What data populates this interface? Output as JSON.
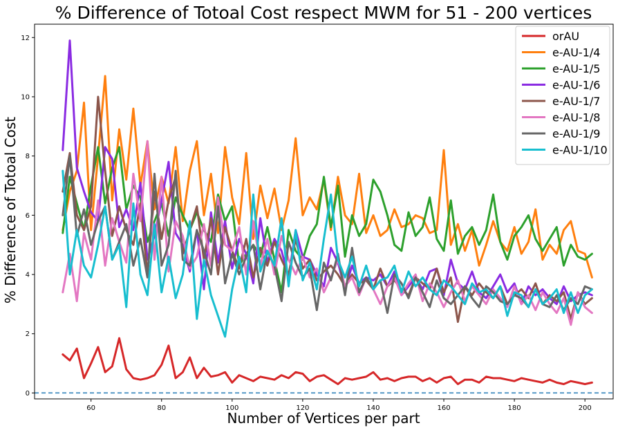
{
  "chart_data": {
    "type": "line",
    "title": "% Difference of Totoal Cost respect MWM for 51 - 200 vertices",
    "xlabel": "Number of Vertices per part",
    "ylabel": "% Difference of Totoal Cost",
    "xlim": [
      44,
      208
    ],
    "ylim": [
      -0.2,
      12.45
    ],
    "xticks": [
      60,
      80,
      100,
      120,
      140,
      160,
      180,
      200
    ],
    "yticks": [
      0,
      2,
      4,
      6,
      8,
      10,
      12
    ],
    "xtick_labels": [
      "60",
      "80",
      "100",
      "120",
      "140",
      "160",
      "180",
      "200"
    ],
    "ytick_labels": [
      "0",
      "2",
      "4",
      "6",
      "8",
      "10",
      "12"
    ],
    "grid": false,
    "legend_position": "top-right",
    "reference_line": {
      "y": 0,
      "style": "dashed",
      "color": "#1f77b4"
    },
    "x_start": 52,
    "x_step": 2,
    "series": [
      {
        "name": "orAU",
        "color": "#d62728",
        "values": [
          1.3,
          1.1,
          1.5,
          0.5,
          1.0,
          1.55,
          0.7,
          0.9,
          1.85,
          0.8,
          0.5,
          0.45,
          0.5,
          0.6,
          0.95,
          1.6,
          0.5,
          0.7,
          1.2,
          0.5,
          0.85,
          0.55,
          0.6,
          0.7,
          0.35,
          0.6,
          0.5,
          0.4,
          0.55,
          0.5,
          0.45,
          0.6,
          0.5,
          0.7,
          0.65,
          0.4,
          0.55,
          0.6,
          0.45,
          0.3,
          0.5,
          0.45,
          0.5,
          0.55,
          0.7,
          0.45,
          0.5,
          0.4,
          0.5,
          0.55,
          0.55,
          0.4,
          0.5,
          0.35,
          0.5,
          0.55,
          0.3,
          0.45,
          0.45,
          0.35,
          0.55,
          0.5,
          0.5,
          0.45,
          0.4,
          0.5,
          0.45,
          0.4,
          0.35,
          0.45,
          0.35,
          0.3,
          0.4,
          0.35,
          0.3,
          0.35
        ]
      },
      {
        "name": "e-AU-1/4",
        "color": "#ff7f0e",
        "values": [
          5.5,
          6.8,
          7.5,
          9.8,
          5.5,
          8.0,
          10.7,
          6.5,
          8.9,
          7.2,
          9.6,
          7.0,
          8.5,
          6.2,
          7.3,
          6.4,
          8.3,
          5.8,
          7.5,
          8.5,
          6.0,
          7.4,
          5.4,
          8.3,
          6.6,
          5.7,
          8.1,
          5.2,
          7.0,
          5.9,
          6.9,
          5.5,
          6.5,
          8.6,
          6.0,
          6.6,
          6.2,
          7.2,
          5.5,
          7.3,
          6.0,
          5.7,
          7.4,
          5.4,
          6.0,
          5.3,
          5.5,
          6.2,
          5.6,
          5.7,
          6.0,
          5.9,
          5.4,
          5.5,
          8.2,
          5.0,
          5.7,
          4.8,
          5.5,
          4.3,
          5.0,
          5.8,
          5.1,
          4.8,
          5.6,
          4.7,
          5.1,
          6.2,
          4.5,
          5.0,
          4.7,
          5.5,
          5.8,
          4.8,
          4.7,
          3.9
        ]
      },
      {
        "name": "e-AU-1/5",
        "color": "#2ca02c",
        "values": [
          5.4,
          7.3,
          6.4,
          5.5,
          7.0,
          8.3,
          6.4,
          7.6,
          8.3,
          6.2,
          7.0,
          6.6,
          5.1,
          5.8,
          6.4,
          5.3,
          6.6,
          6.0,
          5.5,
          6.1,
          5.5,
          5.1,
          6.7,
          5.8,
          6.3,
          4.3,
          4.7,
          5.0,
          4.6,
          5.6,
          4.5,
          3.4,
          5.5,
          4.8,
          4.5,
          5.3,
          5.7,
          7.3,
          5.6,
          7.0,
          4.6,
          6.0,
          5.3,
          5.7,
          7.2,
          6.8,
          6.0,
          5.0,
          4.8,
          6.1,
          5.3,
          5.6,
          6.6,
          5.2,
          4.8,
          6.5,
          4.7,
          5.3,
          5.6,
          5.0,
          5.5,
          6.7,
          5.1,
          4.5,
          5.3,
          5.6,
          6.0,
          5.2,
          4.8,
          5.2,
          5.6,
          4.3,
          5.0,
          4.6,
          4.5,
          4.7
        ]
      },
      {
        "name": "e-AU-1/6",
        "color": "#8a2be2",
        "values": [
          8.2,
          11.9,
          7.6,
          6.8,
          6.1,
          5.8,
          8.3,
          7.9,
          5.6,
          6.2,
          5.5,
          7.1,
          4.5,
          5.3,
          6.5,
          7.8,
          5.4,
          5.0,
          4.1,
          5.5,
          3.5,
          6.1,
          4.4,
          5.8,
          4.2,
          5.2,
          4.7,
          3.7,
          5.9,
          4.4,
          5.2,
          4.8,
          3.9,
          5.5,
          4.6,
          4.5,
          4.0,
          3.6,
          4.9,
          4.4,
          3.5,
          4.3,
          3.7,
          3.9,
          3.8,
          4.0,
          3.6,
          4.1,
          3.3,
          3.6,
          3.9,
          3.5,
          4.1,
          4.2,
          3.3,
          4.5,
          3.7,
          3.5,
          4.1,
          3.4,
          3.2,
          3.6,
          4.0,
          3.4,
          3.7,
          3.0,
          3.6,
          3.3,
          3.5,
          3.2,
          3.0,
          3.6,
          3.1,
          3.3,
          3.4,
          3.3
        ]
      },
      {
        "name": "e-AU-1/7",
        "color": "#8c564b",
        "values": [
          6.8,
          8.1,
          6.0,
          5.5,
          6.3,
          10.0,
          7.5,
          5.3,
          6.3,
          5.5,
          5.0,
          6.4,
          4.0,
          6.8,
          5.2,
          6.5,
          7.3,
          4.7,
          5.5,
          6.3,
          4.5,
          5.9,
          4.0,
          5.6,
          4.8,
          4.2,
          5.2,
          3.9,
          4.9,
          4.3,
          5.1,
          4.5,
          4.0,
          5.2,
          4.2,
          4.5,
          3.8,
          4.1,
          4.3,
          4.0,
          3.6,
          4.0,
          3.7,
          3.8,
          3.5,
          4.2,
          3.6,
          3.8,
          3.5,
          3.3,
          3.9,
          3.7,
          3.5,
          4.2,
          3.4,
          3.9,
          2.4,
          3.6,
          3.3,
          3.7,
          3.4,
          3.2,
          3.6,
          3.0,
          3.3,
          3.5,
          3.2,
          3.7,
          3.0,
          3.3,
          3.1,
          3.4,
          2.5,
          3.4,
          3.0,
          3.2
        ]
      },
      {
        "name": "e-AU-1/8",
        "color": "#e377c2",
        "values": [
          3.4,
          4.7,
          3.1,
          5.4,
          4.5,
          6.5,
          4.3,
          5.9,
          5.1,
          4.4,
          7.4,
          5.8,
          8.5,
          4.5,
          7.3,
          4.1,
          5.8,
          5.3,
          4.2,
          4.6,
          5.7,
          4.3,
          6.6,
          5.0,
          4.8,
          5.6,
          4.0,
          5.8,
          4.3,
          5.2,
          4.0,
          5.3,
          4.5,
          4.0,
          4.6,
          3.9,
          4.2,
          3.4,
          3.9,
          4.5,
          3.6,
          3.9,
          3.3,
          3.9,
          3.5,
          3.0,
          3.6,
          3.9,
          3.3,
          3.7,
          4.0,
          3.1,
          3.7,
          3.4,
          2.9,
          3.4,
          3.8,
          3.1,
          3.6,
          3.3,
          3.0,
          3.5,
          3.2,
          2.9,
          3.6,
          3.0,
          3.3,
          2.8,
          3.4,
          3.0,
          2.7,
          3.2,
          2.3,
          3.4,
          2.9,
          2.7
        ]
      },
      {
        "name": "e-AU-1/9",
        "color": "#666666",
        "values": [
          6.0,
          8.0,
          5.3,
          6.2,
          5.0,
          5.8,
          6.3,
          4.5,
          5.1,
          5.7,
          4.3,
          5.2,
          3.9,
          7.4,
          4.3,
          5.0,
          7.5,
          4.5,
          4.3,
          5.5,
          4.8,
          4.0,
          6.3,
          3.7,
          4.7,
          4.0,
          4.6,
          5.0,
          3.5,
          4.8,
          4.3,
          3.1,
          5.1,
          4.4,
          3.9,
          4.2,
          2.8,
          4.4,
          3.8,
          4.7,
          3.3,
          4.9,
          3.4,
          3.9,
          3.5,
          3.8,
          2.7,
          4.0,
          3.7,
          3.2,
          3.9,
          3.4,
          2.9,
          3.8,
          3.2,
          3.0,
          3.3,
          3.6,
          3.2,
          2.9,
          3.6,
          3.4,
          3.1,
          3.0,
          3.3,
          3.2,
          2.9,
          3.5,
          3.0,
          2.9,
          3.3,
          2.8,
          3.2,
          3.0,
          3.6,
          3.5
        ]
      },
      {
        "name": "e-AU-1/10",
        "color": "#17becf",
        "values": [
          7.5,
          4.0,
          5.5,
          4.3,
          3.9,
          5.0,
          6.3,
          4.5,
          5.0,
          2.9,
          6.4,
          4.0,
          3.3,
          5.7,
          3.4,
          4.6,
          3.2,
          4.0,
          5.8,
          2.5,
          4.5,
          3.3,
          2.6,
          1.9,
          3.5,
          4.6,
          3.4,
          6.7,
          4.1,
          4.8,
          4.3,
          5.9,
          3.6,
          5.5,
          3.8,
          4.4,
          3.5,
          5.2,
          6.7,
          4.5,
          3.9,
          4.6,
          3.6,
          4.3,
          3.5,
          3.8,
          3.9,
          4.3,
          3.4,
          4.1,
          3.6,
          3.9,
          3.5,
          3.3,
          3.8,
          3.6,
          3.3,
          3.0,
          3.7,
          3.4,
          3.5,
          3.2,
          3.6,
          2.6,
          3.4,
          3.3,
          2.9,
          3.5,
          3.0,
          3.2,
          3.5,
          2.7,
          3.4,
          2.7,
          3.3,
          3.5
        ]
      }
    ]
  }
}
